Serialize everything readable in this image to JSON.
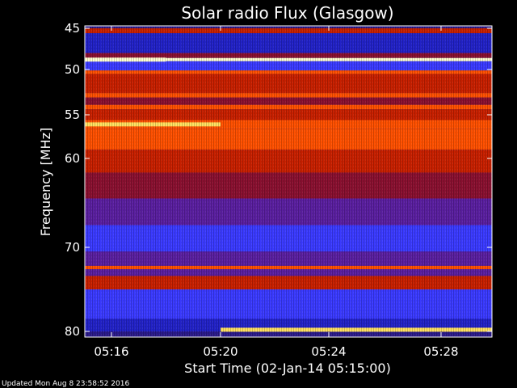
{
  "chart_data": {
    "type": "heatmap",
    "title": "Solar radio Flux (Glasgow)",
    "xlabel": "Start Time (02-Jan-14 05:15:00)",
    "ylabel": "Frequency [MHz]",
    "x_range_minutes": [
      5.15,
      5.3
    ],
    "x_ticks": [
      {
        "label": "05:16",
        "value": 5.2667
      },
      {
        "label": "05:20",
        "value": 5.3333
      },
      {
        "label": "05:24",
        "value": 5.4
      },
      {
        "label": "05:28",
        "value": 5.4667
      }
    ],
    "y_range_mhz": [
      45,
      80
    ],
    "y_ticks": [
      {
        "label": "45",
        "value": 45
      },
      {
        "label": "50",
        "value": 50
      },
      {
        "label": "55",
        "value": 55
      },
      {
        "label": "60",
        "value": 60
      },
      {
        "label": "70",
        "value": 70
      },
      {
        "label": "80",
        "value": 80
      }
    ],
    "colormap": [
      "#2222c8",
      "#3a3aff",
      "#5a1fa0",
      "#8a1030",
      "#c82000",
      "#ff5000",
      "#ffa000",
      "#ffe060",
      "#ffffd0"
    ],
    "bands": [
      {
        "from_mhz": 45.0,
        "to_mhz": 45.6,
        "intensity": 0.55
      },
      {
        "from_mhz": 45.6,
        "to_mhz": 48.0,
        "intensity": 0.05
      },
      {
        "from_mhz": 48.0,
        "to_mhz": 48.6,
        "intensity": 0.35
      },
      {
        "from_mhz": 48.6,
        "to_mhz": 49.0,
        "intensity": 0.98
      },
      {
        "from_mhz": 49.0,
        "to_mhz": 50.1,
        "intensity": 0.12
      },
      {
        "from_mhz": 50.1,
        "to_mhz": 50.5,
        "intensity": 0.65
      },
      {
        "from_mhz": 50.5,
        "to_mhz": 52.6,
        "intensity": 0.45
      },
      {
        "from_mhz": 52.6,
        "to_mhz": 53.1,
        "intensity": 0.6
      },
      {
        "from_mhz": 53.1,
        "to_mhz": 53.9,
        "intensity": 0.4
      },
      {
        "from_mhz": 53.9,
        "to_mhz": 54.4,
        "intensity": 0.62
      },
      {
        "from_mhz": 54.4,
        "to_mhz": 55.6,
        "intensity": 0.5
      },
      {
        "from_mhz": 55.6,
        "to_mhz": 56.6,
        "intensity": 0.66
      },
      {
        "from_mhz": 56.6,
        "to_mhz": 59.0,
        "intensity": 0.68
      },
      {
        "from_mhz": 59.0,
        "to_mhz": 61.6,
        "intensity": 0.55
      },
      {
        "from_mhz": 61.6,
        "to_mhz": 62.5,
        "intensity": 0.42
      },
      {
        "from_mhz": 62.5,
        "to_mhz": 64.5,
        "intensity": 0.32
      },
      {
        "from_mhz": 64.5,
        "to_mhz": 67.5,
        "intensity": 0.2
      },
      {
        "from_mhz": 67.5,
        "to_mhz": 70.5,
        "intensity": 0.18
      },
      {
        "from_mhz": 70.5,
        "to_mhz": 72.2,
        "intensity": 0.3
      },
      {
        "from_mhz": 72.2,
        "to_mhz": 72.6,
        "intensity": 0.62
      },
      {
        "from_mhz": 72.6,
        "to_mhz": 73.4,
        "intensity": 0.3
      },
      {
        "from_mhz": 73.4,
        "to_mhz": 75.0,
        "intensity": 0.45
      },
      {
        "from_mhz": 75.0,
        "to_mhz": 77.5,
        "intensity": 0.12
      },
      {
        "from_mhz": 77.5,
        "to_mhz": 78.5,
        "intensity": 0.08
      },
      {
        "from_mhz": 78.5,
        "to_mhz": 80.0,
        "intensity": 0.02
      }
    ],
    "features": [
      {
        "kind": "hline",
        "mhz": 48.8,
        "from_min": 5.15,
        "to_min": 5.3,
        "intensity": 1.0
      },
      {
        "kind": "hline",
        "mhz": 56.1,
        "from_min": 5.15,
        "to_min": 5.3333,
        "intensity": 0.88
      },
      {
        "kind": "hline",
        "mhz": 79.8,
        "from_min": 5.3333,
        "to_min": 5.3,
        "intensity": 0.9
      }
    ],
    "grid": false,
    "legend": "none"
  },
  "footer": {
    "updated": "Updated Mon Aug  8 23:58:52 2016"
  }
}
